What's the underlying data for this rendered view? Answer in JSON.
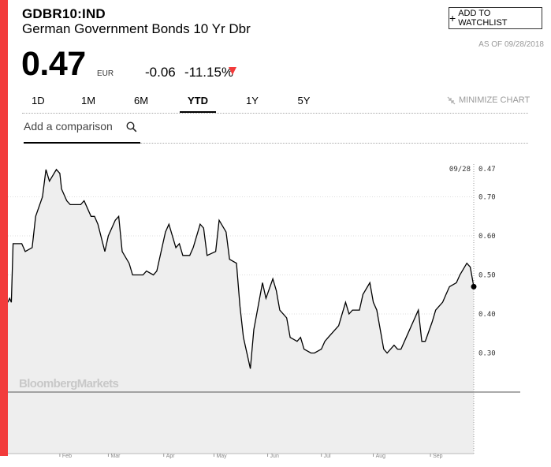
{
  "header": {
    "ticker": "GDBR10:IND",
    "name": "German Government Bonds 10 Yr Dbr",
    "watchlist_label": "ADD TO WATCHLIST",
    "as_of": "AS OF 09/28/2018"
  },
  "quote": {
    "price": "0.47",
    "currency": "EUR",
    "change": "-0.06",
    "change_pct": "-11.15%",
    "direction": "down"
  },
  "ranges": {
    "tabs": [
      "1D",
      "1M",
      "6M",
      "YTD",
      "1Y",
      "5Y"
    ],
    "active": "YTD",
    "minimize_label": "MINIMIZE CHART"
  },
  "compare": {
    "placeholder": "Add a comparison"
  },
  "watermark": "BloombergMarkets",
  "colors": {
    "accent": "#f23b3b",
    "area_fill": "#eeeeee",
    "line": "#000000"
  },
  "chart_data": {
    "type": "area",
    "x": [
      "01/02",
      "01/03",
      "01/04",
      "01/05",
      "01/08",
      "01/10",
      "01/12",
      "01/16",
      "01/18",
      "01/22",
      "01/24",
      "01/26",
      "01/30",
      "02/01",
      "02/02",
      "02/05",
      "02/07",
      "02/09",
      "02/13",
      "02/15",
      "02/19",
      "02/21",
      "02/23",
      "02/27",
      "03/01",
      "03/05",
      "03/07",
      "03/09",
      "03/13",
      "03/15",
      "03/19",
      "03/21",
      "03/23",
      "03/27",
      "03/29",
      "04/03",
      "04/05",
      "04/09",
      "04/11",
      "04/13",
      "04/17",
      "04/19",
      "04/23",
      "04/25",
      "04/27",
      "05/02",
      "05/04",
      "05/08",
      "05/10",
      "05/14",
      "05/16",
      "05/18",
      "05/22",
      "05/24",
      "05/29",
      "05/31",
      "06/04",
      "06/06",
      "06/08",
      "06/12",
      "06/14",
      "06/18",
      "06/20",
      "06/22",
      "06/26",
      "06/28",
      "07/02",
      "07/04",
      "07/06",
      "07/10",
      "07/12",
      "07/16",
      "07/18",
      "07/20",
      "07/24",
      "07/26",
      "07/30",
      "08/01",
      "08/03",
      "08/07",
      "08/09",
      "08/13",
      "08/15",
      "08/17",
      "08/21",
      "08/23",
      "08/27",
      "08/29",
      "08/31",
      "09/04",
      "09/06",
      "09/10",
      "09/12",
      "09/14",
      "09/18",
      "09/20",
      "09/24",
      "09/26",
      "09/28"
    ],
    "values": [
      0.43,
      0.44,
      0.43,
      0.58,
      0.58,
      0.58,
      0.56,
      0.57,
      0.65,
      0.7,
      0.77,
      0.74,
      0.77,
      0.76,
      0.72,
      0.69,
      0.68,
      0.68,
      0.68,
      0.69,
      0.65,
      0.65,
      0.63,
      0.56,
      0.6,
      0.64,
      0.65,
      0.56,
      0.53,
      0.5,
      0.5,
      0.5,
      0.51,
      0.5,
      0.51,
      0.61,
      0.63,
      0.57,
      0.58,
      0.55,
      0.55,
      0.57,
      0.63,
      0.62,
      0.55,
      0.56,
      0.64,
      0.61,
      0.54,
      0.53,
      0.42,
      0.34,
      0.26,
      0.36,
      0.48,
      0.44,
      0.49,
      0.46,
      0.41,
      0.39,
      0.34,
      0.33,
      0.34,
      0.31,
      0.3,
      0.3,
      0.31,
      0.33,
      0.34,
      0.36,
      0.37,
      0.43,
      0.4,
      0.41,
      0.41,
      0.45,
      0.48,
      0.43,
      0.41,
      0.31,
      0.3,
      0.32,
      0.31,
      0.31,
      0.35,
      0.37,
      0.41,
      0.33,
      0.33,
      0.38,
      0.41,
      0.43,
      0.45,
      0.47,
      0.48,
      0.5,
      0.53,
      0.52,
      0.47
    ],
    "last_point": {
      "date": "09/28",
      "value": "0.47"
    },
    "y_ticks": [
      "0.70",
      "0.60",
      "0.50",
      "0.40",
      "0.30"
    ],
    "y_range": [
      0.2,
      0.8
    ],
    "x_ticks": [
      "Feb",
      "Mar",
      "Apr",
      "May",
      "Jun",
      "Jul",
      "Aug",
      "Sep"
    ],
    "x_tick_dates": [
      "02/01",
      "03/01",
      "04/02",
      "05/01",
      "06/01",
      "07/02",
      "08/01",
      "09/03"
    ],
    "grid": true,
    "title": "",
    "xlabel": "",
    "ylabel": ""
  }
}
